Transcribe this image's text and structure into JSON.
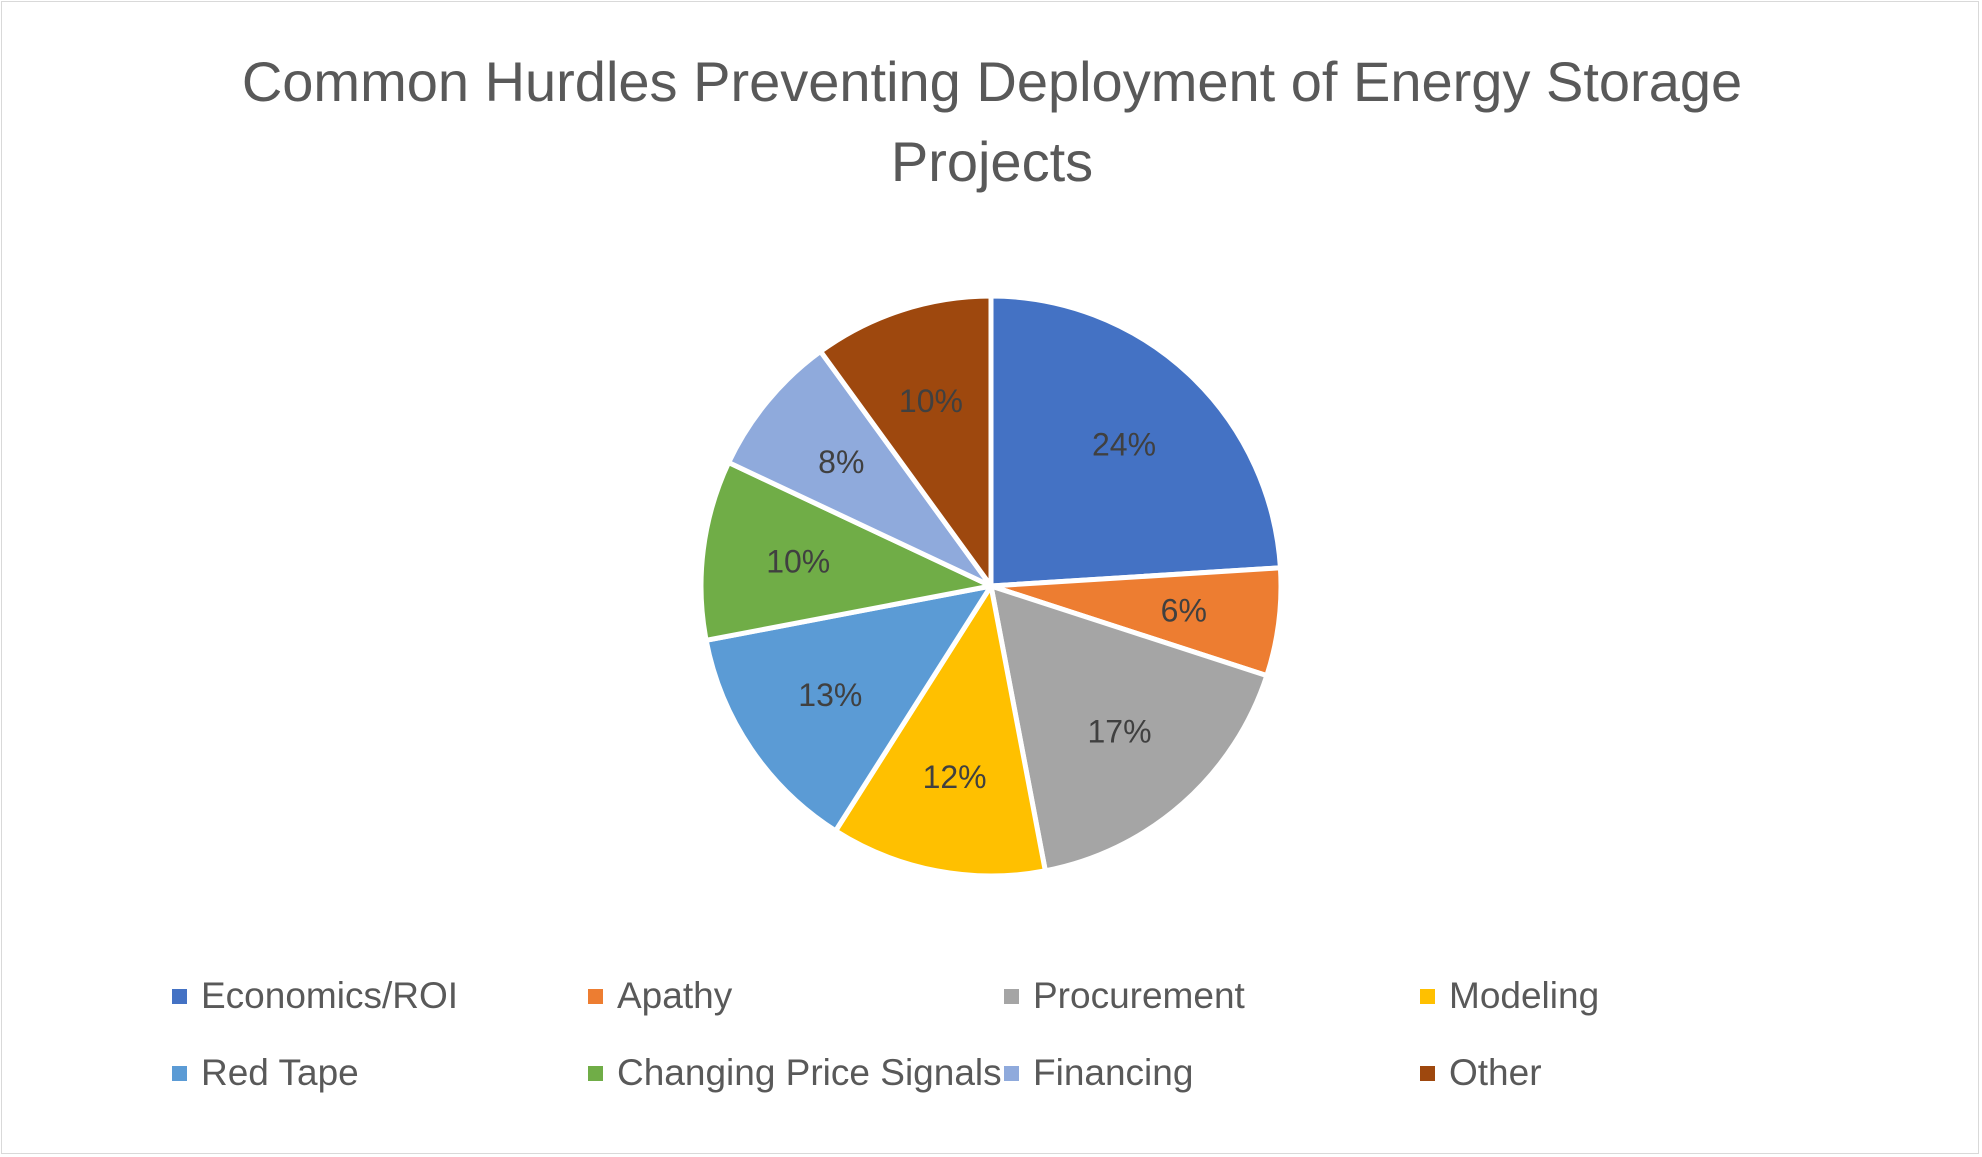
{
  "chart_data": {
    "type": "pie",
    "title": "Common Hurdles Preventing Deployment of Energy Storage Projects",
    "categories": [
      "Economics/ROI",
      "Apathy",
      "Procurement",
      "Modeling",
      "Red Tape",
      "Changing Price Signals",
      "Financing",
      "Other"
    ],
    "values": [
      24,
      6,
      17,
      12,
      13,
      10,
      8,
      10
    ],
    "data_labels": [
      "24%",
      "6%",
      "17%",
      "12%",
      "13%",
      "10%",
      "8%",
      "10%"
    ],
    "colors": [
      "#4472C4",
      "#ED7D31",
      "#A5A5A5",
      "#FFC000",
      "#5B9BD5",
      "#70AD47",
      "#8FAADC",
      "#9E480E"
    ],
    "legend_position": "bottom",
    "start_angle": "12 o'clock",
    "direction": "clockwise"
  }
}
